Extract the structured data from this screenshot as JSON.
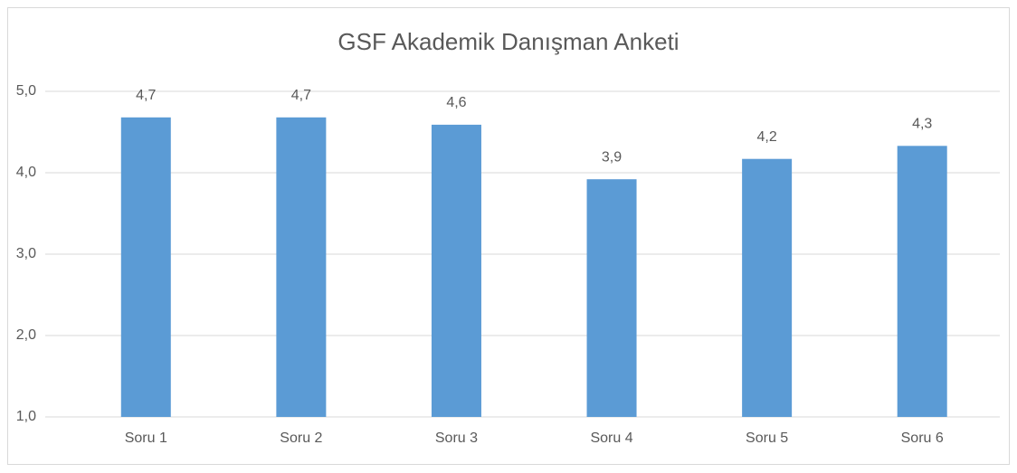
{
  "chart_data": {
    "type": "bar",
    "title": "GSF Akademik Danışman Anketi",
    "categories": [
      "Soru 1",
      "Soru 2",
      "Soru 3",
      "Soru 4",
      "Soru 5",
      "Soru 6"
    ],
    "values": [
      4.68,
      4.68,
      4.59,
      3.92,
      4.17,
      4.33
    ],
    "value_labels": [
      "4,7",
      "4,7",
      "4,6",
      "3,9",
      "4,2",
      "4,3"
    ],
    "color": "#5b9bd5",
    "ylim": [
      1,
      5
    ],
    "yticks": [
      {
        "value": 1,
        "label": "1,0"
      },
      {
        "value": 2,
        "label": "2,0"
      },
      {
        "value": 3,
        "label": "3,0"
      },
      {
        "value": 4,
        "label": "4,0"
      },
      {
        "value": 5,
        "label": "5,0"
      }
    ],
    "grid": true
  }
}
